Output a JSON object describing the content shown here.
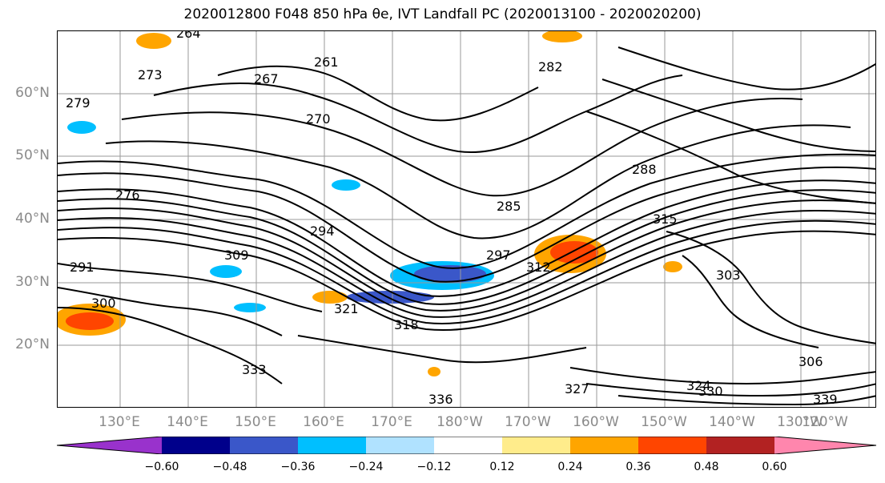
{
  "title": "2020012800 F048 850 hPa θe, IVT Landfall PC (2020013100 - 2020020200)",
  "lat_labels": [
    "60°N",
    "50°N",
    "40°N",
    "30°N",
    "20°N"
  ],
  "lon_labels": [
    "130°E",
    "140°E",
    "150°E",
    "160°E",
    "170°E",
    "180°W",
    "170°W",
    "160°W",
    "150°W",
    "140°W",
    "130°W",
    "120°W"
  ],
  "colorbar": {
    "colors": [
      "#9932cc",
      "#00008b",
      "#3a57c9",
      "#00bfff",
      "#b0e2ff",
      "#ffffff",
      "#ffec8b",
      "#ffa500",
      "#ff4500",
      "#b22222",
      "#ff86ad"
    ],
    "tick_labels": [
      "−0.60",
      "−0.48",
      "−0.36",
      "−0.24",
      "−0.12",
      "0.12",
      "0.24",
      "0.36",
      "0.48",
      "0.60"
    ]
  },
  "contour_labels": [
    "264",
    "261",
    "267",
    "270",
    "273",
    "276",
    "279",
    "282",
    "285",
    "288",
    "291",
    "294",
    "297",
    "300",
    "303",
    "306",
    "309",
    "312",
    "315",
    "318",
    "321",
    "324",
    "327",
    "330",
    "333",
    "336",
    "339"
  ]
}
